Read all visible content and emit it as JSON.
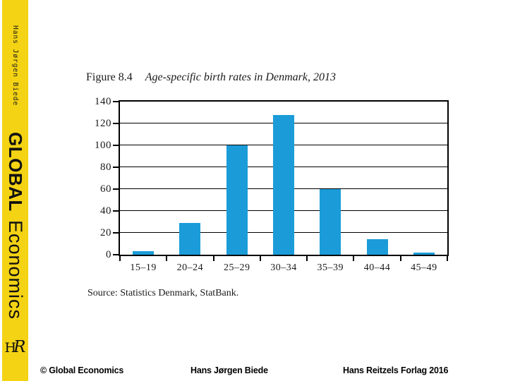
{
  "sidebar": {
    "background_color": "#F4D314",
    "author_vertical": "Hans Jørgen Biede",
    "brand_bold": "GLOBAL",
    "brand_light": "Economics",
    "logo_h": "H",
    "logo_r": "R"
  },
  "figure": {
    "label": "Figure 8.4",
    "title": "Age-specific birth rates in Denmark, 2013",
    "source": "Source: Statistics Denmark, StatBank."
  },
  "chart_data": {
    "type": "bar",
    "title": "Age-specific birth rates in Denmark, 2013",
    "categories": [
      "15–19",
      "20–24",
      "25–29",
      "30–34",
      "35–39",
      "40–44",
      "45–49"
    ],
    "values": [
      3,
      29,
      100,
      128,
      60,
      14,
      2
    ],
    "xlabel": "",
    "ylabel": "",
    "ylim": [
      0,
      140
    ],
    "yticks": [
      0,
      20,
      40,
      60,
      80,
      100,
      120,
      140
    ],
    "grid": true,
    "legend": false,
    "bar_color": "#1B9CD8"
  },
  "footer": {
    "left": "© Global Economics",
    "center": "Hans Jørgen Biede",
    "right": "Hans Reitzels Forlag 2016"
  }
}
